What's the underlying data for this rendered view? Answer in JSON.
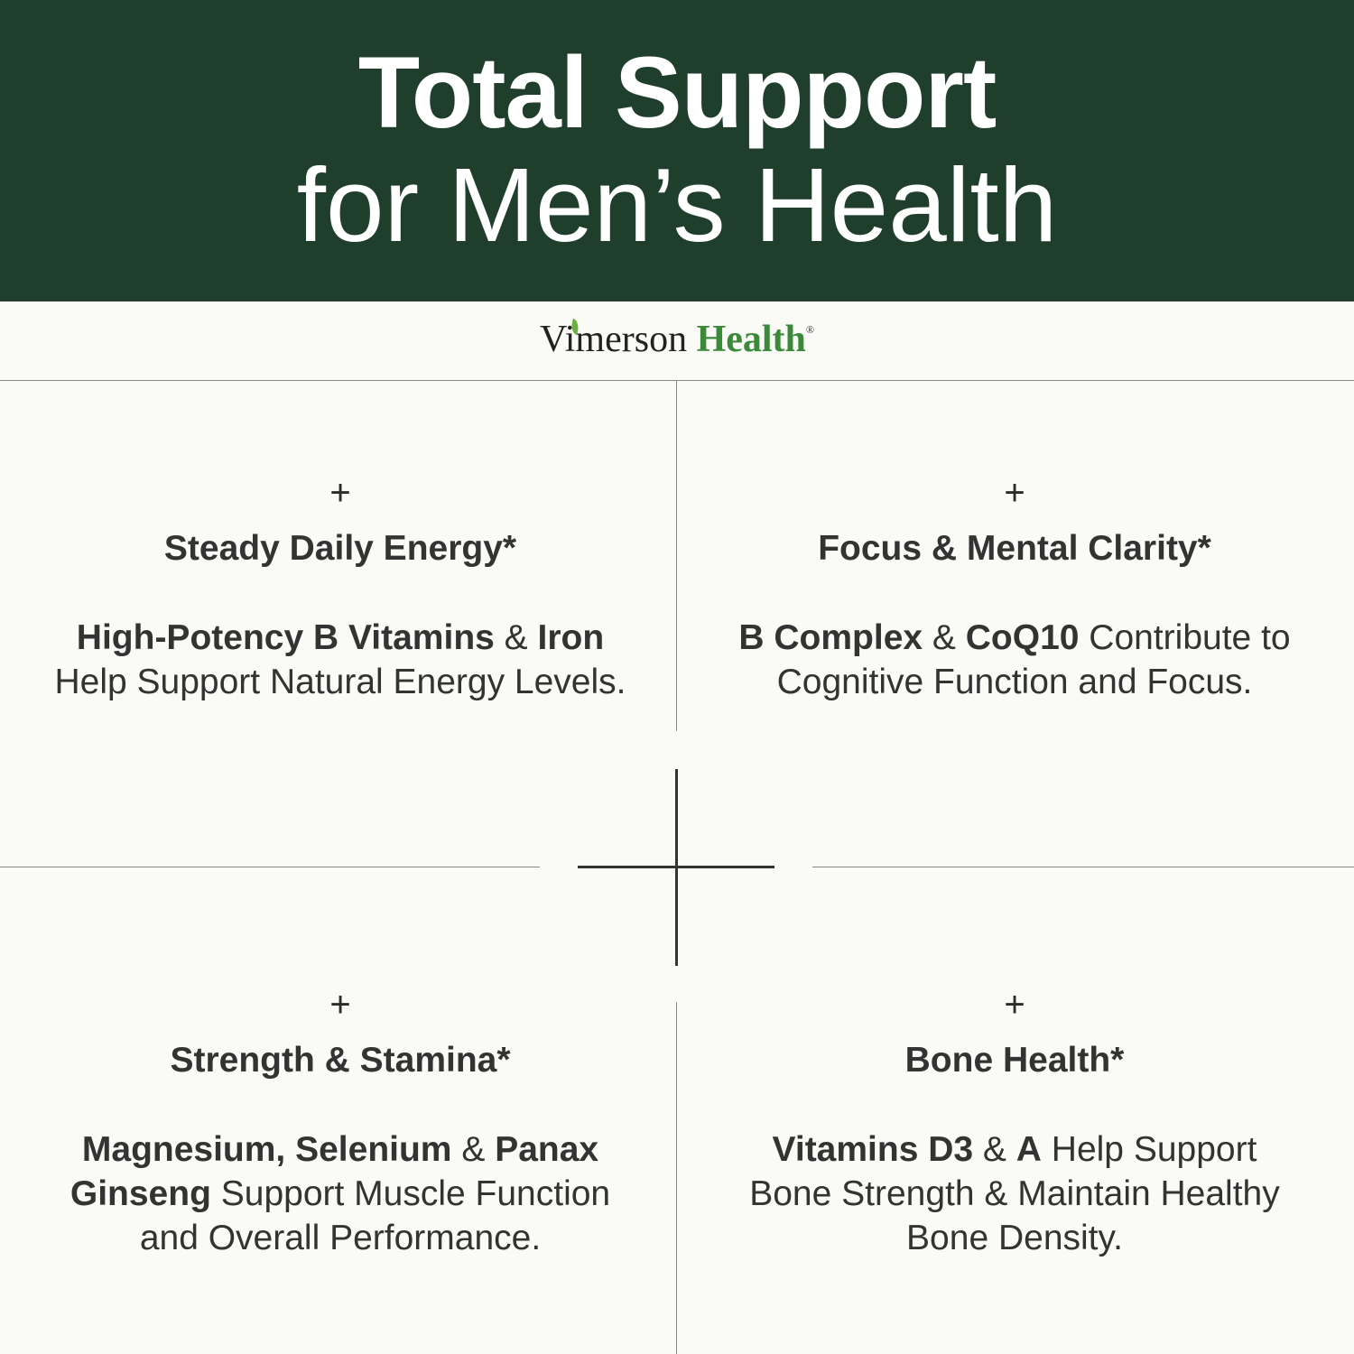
{
  "header": {
    "title_line1": "Total Support",
    "title_line2": "for Men’s Health",
    "background": "#1f3f2c"
  },
  "logo": {
    "part1": "Vimerson",
    "part2": "Health",
    "registered": "®",
    "brand_green": "#3a8a3a"
  },
  "quadrants": [
    {
      "icon": "plus-icon",
      "plus": "+",
      "heading": "Steady Daily Energy*",
      "lines": [
        [
          {
            "t": "High-Potency B Vitamins",
            "b": true
          },
          {
            "t": " & ",
            "b": false
          },
          {
            "t": "Iron",
            "b": true
          }
        ],
        [
          {
            "t": "Help Support Natural Energy Levels.",
            "b": false
          }
        ]
      ]
    },
    {
      "icon": "plus-icon",
      "plus": "+",
      "heading": "Focus & Mental Clarity*",
      "lines": [
        [
          {
            "t": "B Complex",
            "b": true
          },
          {
            "t": " & ",
            "b": false
          },
          {
            "t": "CoQ10",
            "b": true
          },
          {
            "t": " Contribute to",
            "b": false
          }
        ],
        [
          {
            "t": "Cognitive Function and Focus.",
            "b": false
          }
        ]
      ]
    },
    {
      "icon": "plus-icon",
      "plus": "+",
      "heading": "Strength & Stamina*",
      "lines": [
        [
          {
            "t": "Magnesium, Selenium",
            "b": true
          },
          {
            "t": " & ",
            "b": false
          },
          {
            "t": "Panax",
            "b": true
          }
        ],
        [
          {
            "t": "Ginseng",
            "b": true
          },
          {
            "t": " Support Muscle Function",
            "b": false
          }
        ],
        [
          {
            "t": "and Overall Performance.",
            "b": false
          }
        ]
      ]
    },
    {
      "icon": "plus-icon",
      "plus": "+",
      "heading": "Bone Health*",
      "lines": [
        [
          {
            "t": "Vitamins D3",
            "b": true
          },
          {
            "t": " & ",
            "b": false
          },
          {
            "t": "A",
            "b": true
          },
          {
            "t": " Help Support",
            "b": false
          }
        ],
        [
          {
            "t": "Bone Strength & Maintain Healthy",
            "b": false
          }
        ],
        [
          {
            "t": "Bone Density.",
            "b": false
          }
        ]
      ]
    }
  ]
}
